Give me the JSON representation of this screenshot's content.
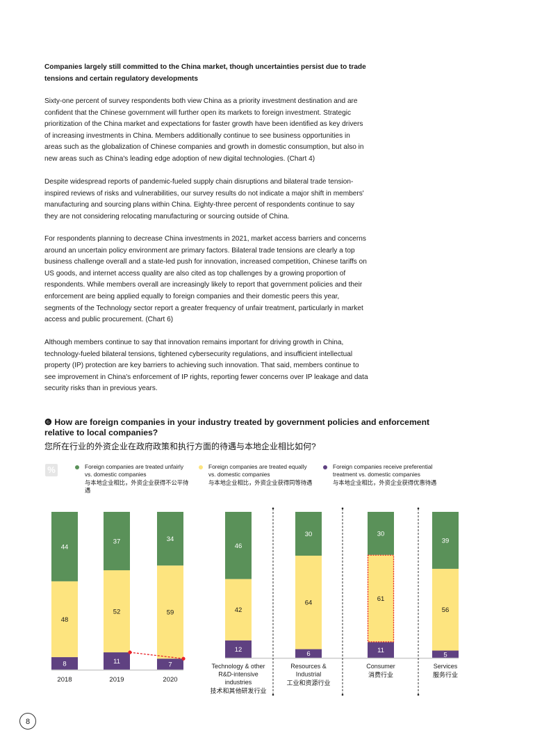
{
  "body": {
    "heading": "Companies largely still committed to the China market, though uncertainties persist due to trade tensions and certain regulatory developments",
    "paragraphs": [
      "Sixty-one percent of survey respondents both view China as a priority investment destination and are confident that the Chinese government will further open its markets to foreign investment. Strategic prioritization of the China market and expectations for faster growth have been identified as key drivers of increasing investments in China. Members additionally continue to see business opportunities in areas such as the globalization of Chinese companies and growth in domestic consumption, but also in new areas such as China's leading edge adoption of new digital technologies. (Chart 4)",
      "Despite widespread reports of pandemic-fueled supply chain disruptions and bilateral trade tension-inspired reviews of risks and vulnerabilities, our survey results do not indicate a major shift in members' manufacturing and sourcing plans within China. Eighty-three percent of respondents continue to say they are not considering relocating manufacturing or sourcing outside of China.",
      "For respondents planning to decrease China investments in 2021, market access barriers and concerns around an uncertain policy environment are primary factors. Bilateral trade tensions are clearly a top business challenge overall and a state-led push for innovation, increased competition, Chinese tariffs on US goods, and internet access quality are also cited as top challenges by a growing proportion of respondents. While members overall are increasingly likely to report that government policies and their enforcement are being applied equally to foreign companies and their domestic peers this year, segments of the Technology sector report a greater frequency of unfair treatment, particularly in market access and public procurement. (Chart 6)",
      "Although members continue to say that innovation remains important for driving growth in China, technology-fueled bilateral tensions, tightened cybersecurity regulations, and insufficient intellectual property (IP) protection are key barriers to achieving such innovation. That said, members continue to see improvement in China's enforcement of IP rights, reporting fewer concerns over IP leakage and data security risks than in previous years."
    ]
  },
  "page_number": "8",
  "chart_data": {
    "type": "bar",
    "number_glyph": "❻",
    "title": "How are foreign companies in your industry treated by government policies and enforcement relative to local companies?",
    "title_cn": "您所在行业的外资企业在政府政策和执行方面的待遇与本地企业相比如何?",
    "unit_badge": "%",
    "colors": {
      "unfair": "#5a9159",
      "equal": "#fde47f",
      "preferential": "#5f4181",
      "highlight": "#e8232a"
    },
    "legend": [
      {
        "key": "unfair",
        "en": "Foreign companies are treated unfairly vs. domestic companies",
        "cn": "与本地企业相比，外资企业获得不公平待遇"
      },
      {
        "key": "equal",
        "en": "Foreign companies are treated equally vs. domestic companies",
        "cn": "与本地企业相比，外资企业获得同等待遇"
      },
      {
        "key": "preferential",
        "en": "Foreign companies receive preferential treatment vs. domestic companies",
        "cn": "与本地企业相比，外资企业获得优惠待遇"
      }
    ],
    "years": {
      "categories": [
        "2018",
        "2019",
        "2020"
      ],
      "series": [
        {
          "name": "preferential",
          "values": [
            8,
            11,
            7
          ]
        },
        {
          "name": "equal",
          "values": [
            48,
            52,
            59
          ]
        },
        {
          "name": "unfair",
          "values": [
            44,
            37,
            34
          ]
        }
      ]
    },
    "industries": {
      "categories": [
        {
          "en": "Technology & other R&D-intensive industries",
          "en_lines": [
            "Technology & other",
            "R&D-intensive",
            "industries"
          ],
          "cn": "技术和其他研发行业"
        },
        {
          "en": "Resources & Industrial",
          "en_lines": [
            "Resources &",
            "Industrial"
          ],
          "cn": "工业和资源行业"
        },
        {
          "en": "Consumer",
          "en_lines": [
            "Consumer"
          ],
          "cn": "消费行业"
        },
        {
          "en": "Services",
          "en_lines": [
            "Services"
          ],
          "cn": "服务行业"
        }
      ],
      "series": [
        {
          "name": "preferential",
          "values": [
            12,
            6,
            11,
            5
          ]
        },
        {
          "name": "equal",
          "values": [
            42,
            64,
            61,
            56
          ]
        },
        {
          "name": "unfair",
          "values": [
            46,
            30,
            30,
            39
          ]
        }
      ],
      "highlighted": {
        "category": "Consumer",
        "series": "equal"
      }
    }
  }
}
